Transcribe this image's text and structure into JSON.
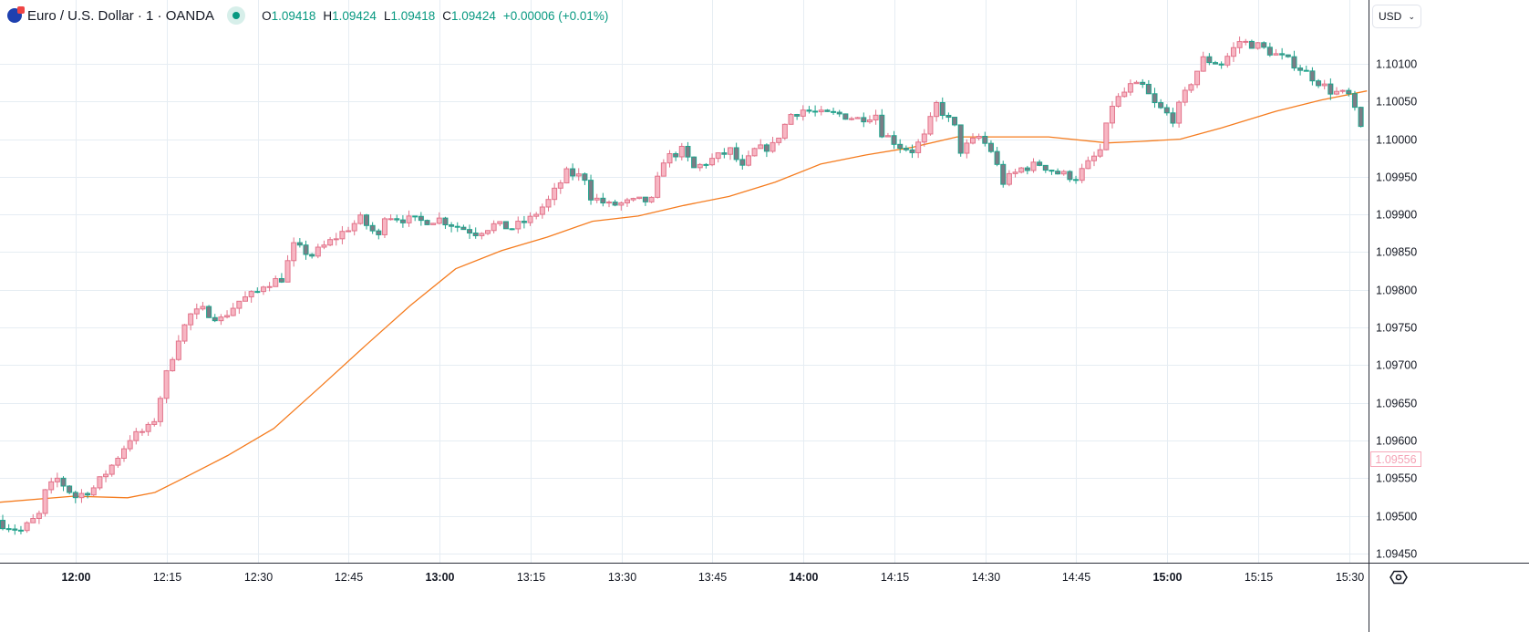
{
  "header": {
    "symbol": "Euro / U.S. Dollar · 1 · OANDA",
    "open_label": "O",
    "open": "1.09418",
    "high_label": "H",
    "high": "1.09424",
    "low_label": "L",
    "low": "1.09418",
    "close_label": "C",
    "close": "1.09424",
    "change": "+0.00006 (+0.01%)"
  },
  "currency_selector": "USD",
  "current_price_label": "1.09556",
  "colors": {
    "up_fill": "#f7b6c3",
    "up_border": "#e2738a",
    "down_fill": "#7a7d86",
    "down_border": "#1fa38c",
    "ma": "#f57c1f",
    "grid": "#e6edf3",
    "axis_text": "#131722"
  },
  "chart_data": {
    "type": "candlestick",
    "title": "Euro / U.S. Dollar · 1 · OANDA",
    "interval_minutes": 1,
    "start_time": "11:48",
    "candle_count": 225,
    "ylim": [
      1.0943,
      1.1014
    ],
    "y_ticks": [
      "1.10100",
      "1.10050",
      "1.10000",
      "1.09950",
      "1.09900",
      "1.09850",
      "1.09800",
      "1.09750",
      "1.09700",
      "1.09650",
      "1.09600",
      "1.09550",
      "1.09500",
      "1.09450"
    ],
    "x_ticks": [
      {
        "label": "12:00",
        "bold": true
      },
      {
        "label": "12:15",
        "bold": false
      },
      {
        "label": "12:30",
        "bold": false
      },
      {
        "label": "12:45",
        "bold": false
      },
      {
        "label": "13:00",
        "bold": true
      },
      {
        "label": "13:15",
        "bold": false
      },
      {
        "label": "13:30",
        "bold": false
      },
      {
        "label": "13:45",
        "bold": false
      },
      {
        "label": "14:00",
        "bold": true
      },
      {
        "label": "14:15",
        "bold": false
      },
      {
        "label": "14:30",
        "bold": false
      },
      {
        "label": "14:45",
        "bold": false
      },
      {
        "label": "15:00",
        "bold": true
      },
      {
        "label": "15:15",
        "bold": false
      },
      {
        "label": "15:30",
        "bold": false
      }
    ],
    "close_path": [
      [
        0,
        1.09489
      ],
      [
        3,
        1.0948
      ],
      [
        6,
        1.09501
      ],
      [
        7,
        1.09531
      ],
      [
        9,
        1.09549
      ],
      [
        12,
        1.09525
      ],
      [
        15,
        1.09537
      ],
      [
        18,
        1.09567
      ],
      [
        21,
        1.09603
      ],
      [
        24,
        1.09616
      ],
      [
        25,
        1.09628
      ],
      [
        27,
        1.09688
      ],
      [
        29,
        1.09737
      ],
      [
        31,
        1.09767
      ],
      [
        33,
        1.09773
      ],
      [
        36,
        1.09761
      ],
      [
        39,
        1.09785
      ],
      [
        42,
        1.09797
      ],
      [
        43,
        1.09807
      ],
      [
        46,
        1.09815
      ],
      [
        48,
        1.09858
      ],
      [
        51,
        1.09846
      ],
      [
        54,
        1.09864
      ],
      [
        57,
        1.09882
      ],
      [
        59,
        1.09894
      ],
      [
        62,
        1.0987
      ],
      [
        63,
        1.099
      ],
      [
        66,
        1.09894
      ],
      [
        69,
        1.09891
      ],
      [
        72,
        1.09894
      ],
      [
        75,
        1.09884
      ],
      [
        78,
        1.09876
      ],
      [
        81,
        1.09886
      ],
      [
        84,
        1.09882
      ],
      [
        87,
        1.09894
      ],
      [
        90,
        1.09918
      ],
      [
        93,
        1.09955
      ],
      [
        96,
        1.09949
      ],
      [
        97,
        1.09924
      ],
      [
        100,
        1.09912
      ],
      [
        105,
        1.09918
      ],
      [
        107,
        1.09918
      ],
      [
        109,
        1.09973
      ],
      [
        112,
        1.09985
      ],
      [
        114,
        1.09961
      ],
      [
        117,
        1.09973
      ],
      [
        120,
        1.09985
      ],
      [
        122,
        1.09961
      ],
      [
        124,
        1.09985
      ],
      [
        127,
        1.09991
      ],
      [
        130,
        1.10033
      ],
      [
        132,
        1.10039
      ],
      [
        135,
        1.10033
      ],
      [
        138,
        1.10033
      ],
      [
        141,
        1.10027
      ],
      [
        144,
        1.10033
      ],
      [
        145,
        1.10009
      ],
      [
        148,
        1.09991
      ],
      [
        150,
        1.09985
      ],
      [
        152,
        1.10003
      ],
      [
        154,
        1.10046
      ],
      [
        157,
        1.10015
      ],
      [
        158,
        1.09985
      ],
      [
        161,
        1.10003
      ],
      [
        163,
        1.09985
      ],
      [
        165,
        1.09943
      ],
      [
        168,
        1.09961
      ],
      [
        171,
        1.09967
      ],
      [
        174,
        1.09955
      ],
      [
        177,
        1.09949
      ],
      [
        179,
        1.09967
      ],
      [
        181,
        1.09985
      ],
      [
        183,
        1.10046
      ],
      [
        186,
        1.1007
      ],
      [
        188,
        1.1007
      ],
      [
        190,
        1.10046
      ],
      [
        193,
        1.10027
      ],
      [
        196,
        1.10076
      ],
      [
        198,
        1.10106
      ],
      [
        201,
        1.101
      ],
      [
        204,
        1.1013
      ],
      [
        207,
        1.10124
      ],
      [
        210,
        1.10112
      ],
      [
        213,
        1.101
      ],
      [
        216,
        1.10082
      ],
      [
        219,
        1.10064
      ],
      [
        222,
        1.10058
      ],
      [
        224,
        1.10015
      ]
    ],
    "moving_average": [
      [
        -0.5,
        1.09518
      ],
      [
        11.6,
        1.09526
      ],
      [
        20.6,
        1.09524
      ],
      [
        25.1,
        1.09531
      ],
      [
        29.6,
        1.09549
      ],
      [
        37.1,
        1.0958
      ],
      [
        44.7,
        1.09616
      ],
      [
        52.2,
        1.0967
      ],
      [
        59.7,
        1.09725
      ],
      [
        67.2,
        1.09779
      ],
      [
        74.7,
        1.09828
      ],
      [
        82.3,
        1.09852
      ],
      [
        89.8,
        1.0987
      ],
      [
        97.3,
        1.09891
      ],
      [
        104.8,
        1.09898
      ],
      [
        112.3,
        1.09912
      ],
      [
        119.8,
        1.09924
      ],
      [
        127.4,
        1.09943
      ],
      [
        134.9,
        1.09967
      ],
      [
        142.4,
        1.09979
      ],
      [
        149.9,
        1.09989
      ],
      [
        157.4,
        1.10003
      ],
      [
        164.9,
        1.10003
      ],
      [
        172.5,
        1.10003
      ],
      [
        182.2,
        1.09995
      ],
      [
        187.5,
        1.09997
      ],
      [
        194.2,
        1.1
      ],
      [
        201,
        1.10015
      ],
      [
        210,
        1.10037
      ],
      [
        217.5,
        1.10052
      ],
      [
        225,
        1.10064
      ]
    ]
  }
}
